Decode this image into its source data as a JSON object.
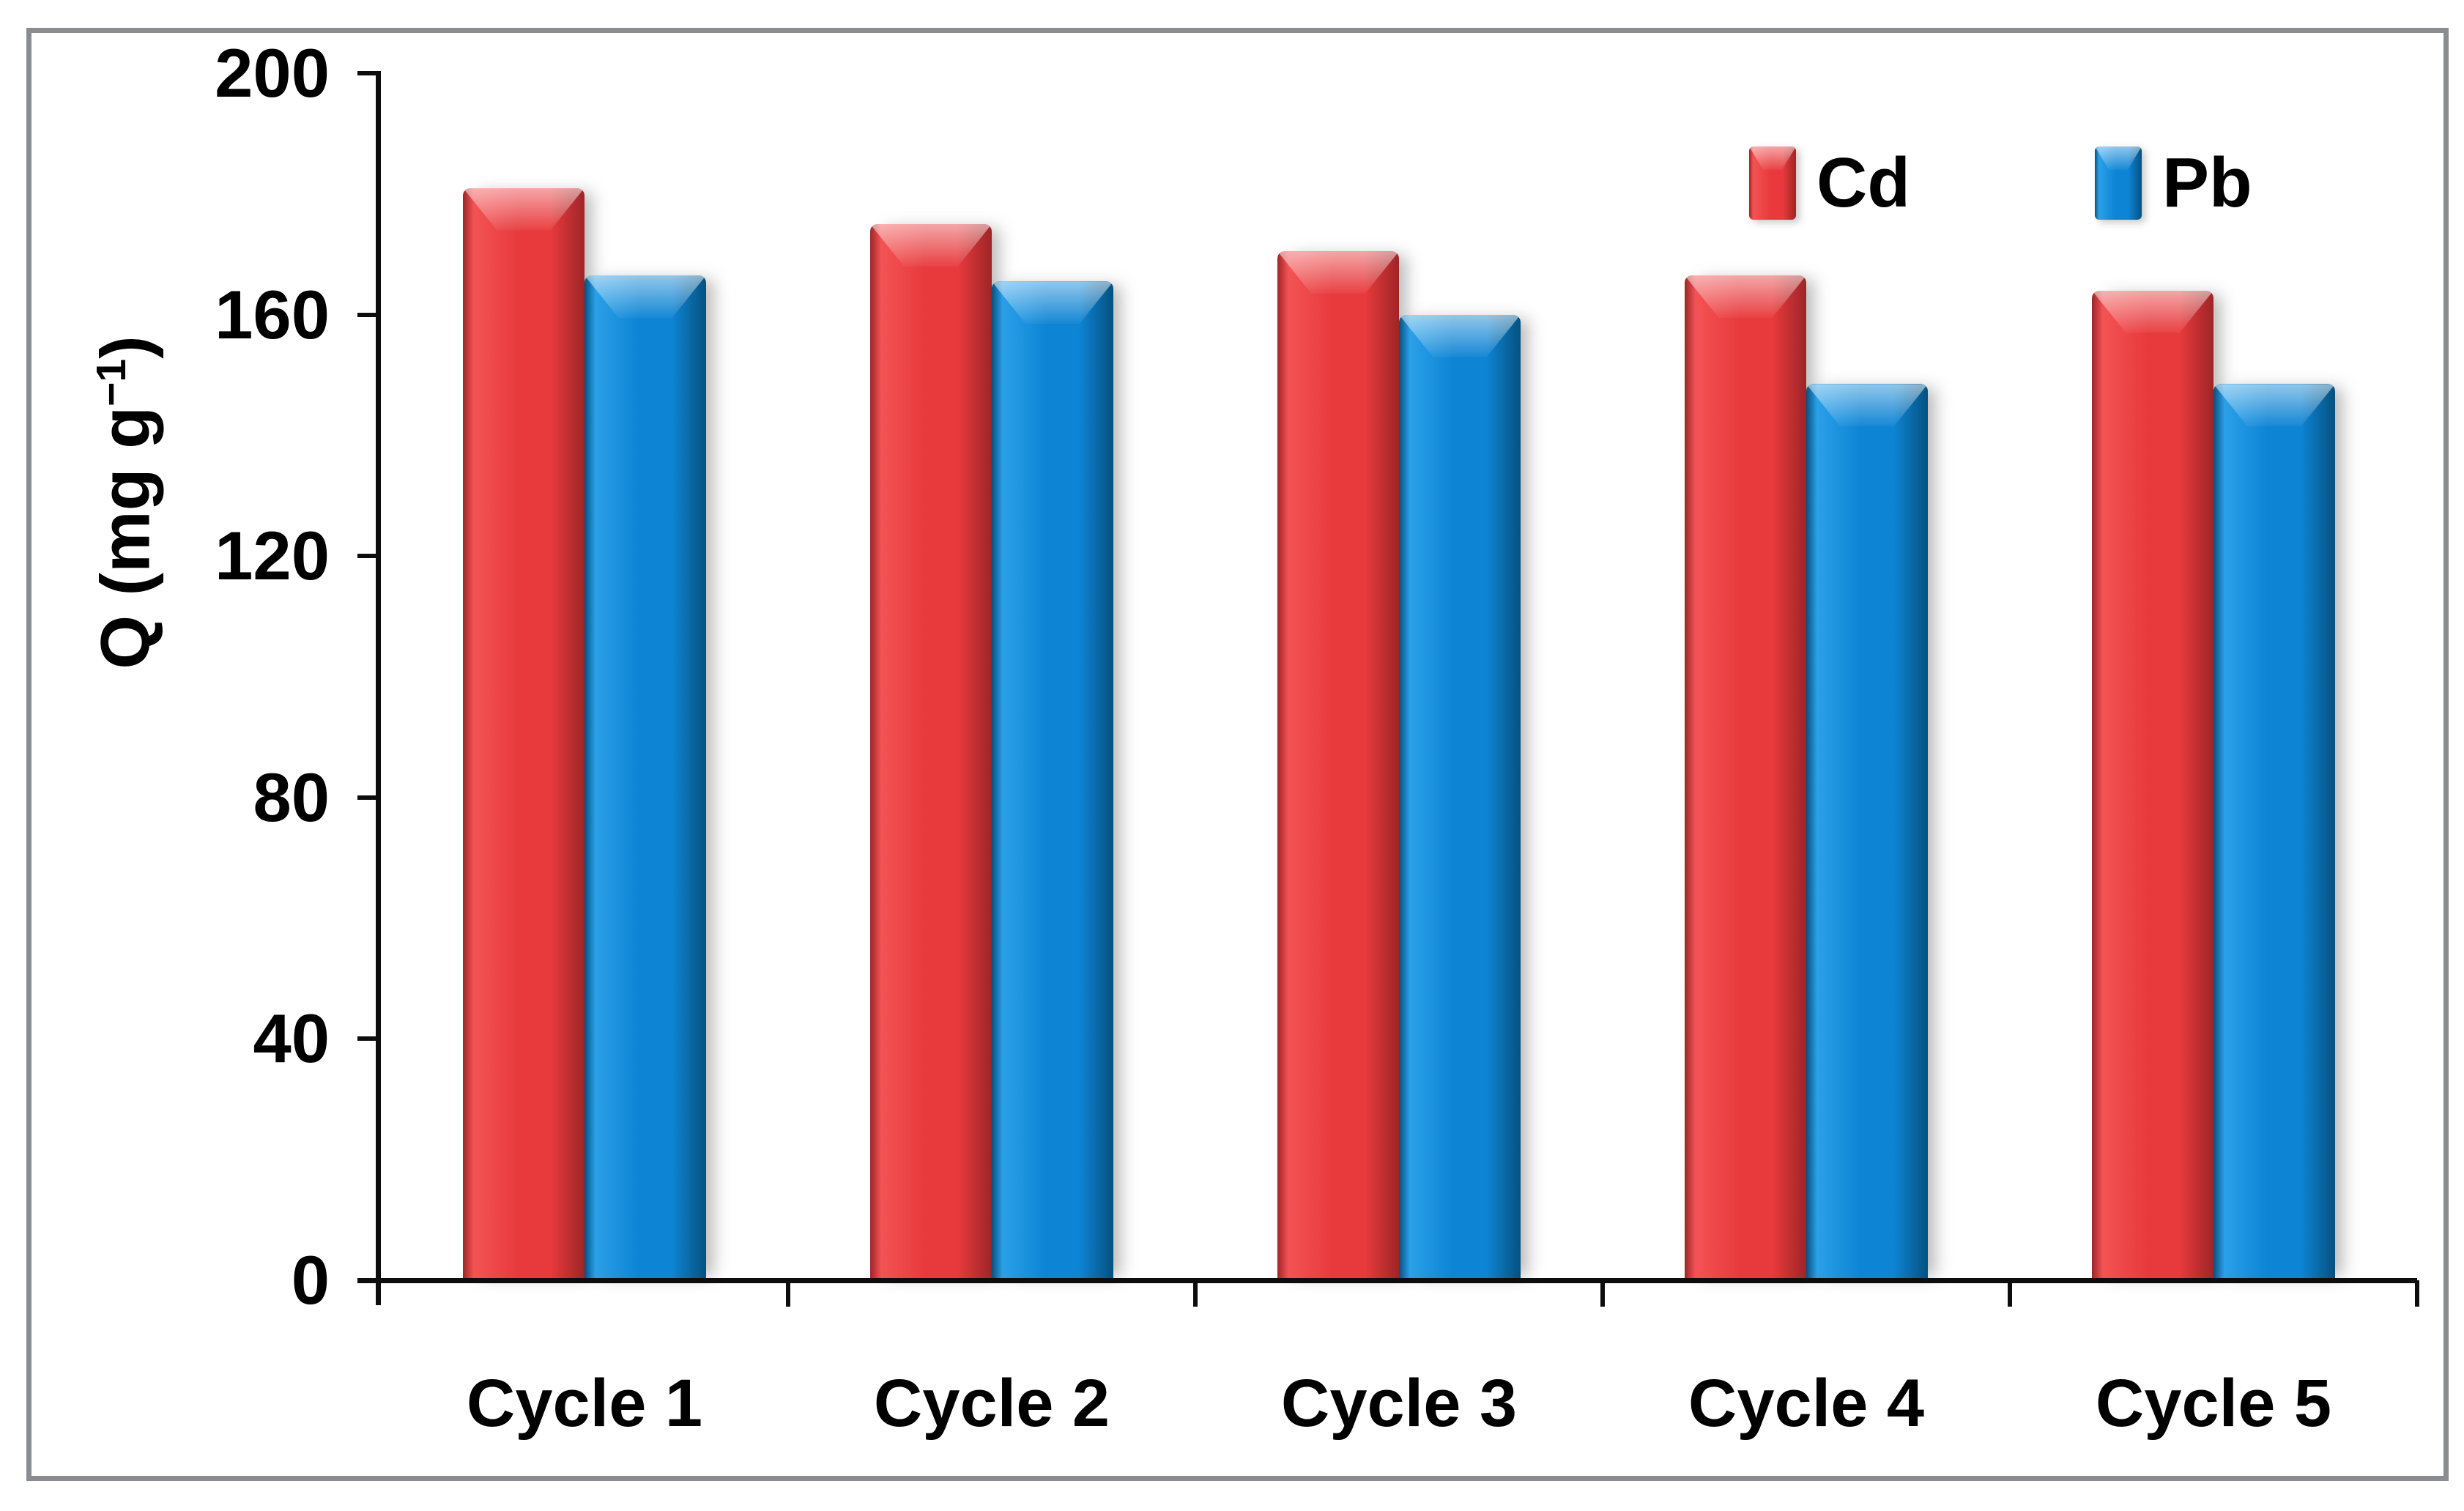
{
  "figure": {
    "background": "#ffffff",
    "frame_color": "#898d90",
    "axis_color": "#0d0d0d",
    "text_color": "#000000"
  },
  "chart_data": {
    "type": "bar",
    "title": "",
    "categories": [
      "Cycle 1",
      "Cycle 2",
      "Cycle 3",
      "Cycle 4",
      "Cycle 5"
    ],
    "series": [
      {
        "name": "Cd",
        "color": "#e83a3c",
        "color_light": "#f35354",
        "color_dark": "#9e2527",
        "values": [
          181,
          175,
          170.5,
          166.5,
          164
        ]
      },
      {
        "name": "Pb",
        "color": "#0d84d4",
        "color_light": "#2ba0e8",
        "color_dark": "#05517f",
        "values": [
          166.5,
          165.5,
          160,
          148.5,
          148.5
        ]
      }
    ],
    "ylabel": "Q (mg g−1)",
    "ylabel_rich": {
      "base": "Q (mg g",
      "sup": "−1",
      "end": ")"
    },
    "xlabel": "",
    "yticks": [
      0,
      40,
      80,
      120,
      160,
      200
    ],
    "ylim": [
      0,
      200
    ],
    "grid": false,
    "legend": {
      "entries": [
        "Cd",
        "Pb"
      ],
      "position": "top-right"
    }
  }
}
